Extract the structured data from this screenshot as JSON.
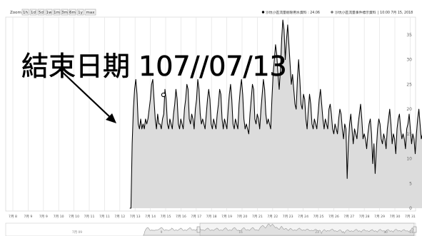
{
  "zoom": {
    "label": "Zoom:",
    "buttons": [
      "1h",
      "1d",
      "5d",
      "1w",
      "1m",
      "3m",
      "6m",
      "1y",
      "max"
    ]
  },
  "legend": {
    "series_label": "沙坑小區流量剔除用水資料 : 24.06",
    "events_label": "沙坑小區流量事件標示資料",
    "datetime": "| 10:00 7月 15, 2018"
  },
  "annotation": {
    "text": "結束日期 107//07/13"
  },
  "navigator": {
    "labels": [
      "7月 09",
      "9",
      "16",
      "23",
      "30",
      "31"
    ]
  },
  "colors": {
    "line": "#000000",
    "fill": "#dcdcdc",
    "annotation": "#000000",
    "nav_fill": "#e8e8e8"
  },
  "chart_data": {
    "type": "area",
    "title": "",
    "xlabel": "",
    "ylabel": "",
    "x_start": "7月 08",
    "x_end": "7月 31",
    "x_tick_labels": [
      "7月 8",
      "7月 9",
      "7月 9",
      "7月 10",
      "7月 10",
      "7月 11",
      "7月 11",
      "7月 12",
      "7月 13",
      "7月 14",
      "7月 15",
      "7月 16",
      "7月 17",
      "7月 18",
      "7月 19",
      "7月 20",
      "7月 21",
      "7月 22",
      "7月 23",
      "7月 24",
      "7月 25",
      "7月 26",
      "7月 27",
      "7月 28",
      "7月 29",
      "7月 30",
      "7月 31"
    ],
    "y_ticks": [
      0,
      5,
      10,
      15,
      20,
      25,
      30,
      35
    ],
    "ylim": [
      0,
      38
    ],
    "grid": {
      "vertical": true,
      "horizontal": false
    },
    "data_start_x": 7.65,
    "data_end_x": 26.75,
    "series": [
      {
        "step_per_point": 0.0795,
        "values": [
          0,
          0,
          13,
          20,
          24,
          26,
          23,
          17,
          16,
          18,
          16,
          17,
          16,
          18,
          17,
          18,
          20,
          22,
          25,
          26,
          22,
          18,
          16,
          19,
          17,
          17,
          16,
          18,
          19,
          24,
          22,
          17,
          16,
          18,
          17,
          16,
          19,
          21,
          24,
          22,
          17,
          16,
          18,
          17,
          16,
          20,
          22,
          25,
          24,
          18,
          17,
          19,
          18,
          16,
          20,
          22,
          26,
          24,
          19,
          17,
          18,
          17,
          16,
          19,
          22,
          24,
          22,
          17,
          16,
          18,
          17,
          16,
          19,
          21,
          24,
          23,
          18,
          16,
          18,
          17,
          16,
          20,
          23,
          25,
          22,
          17,
          16,
          18,
          17,
          16,
          21,
          24,
          26,
          23,
          18,
          16,
          17,
          16,
          15,
          19,
          22,
          25,
          24,
          18,
          17,
          19,
          18,
          16,
          20,
          23,
          26,
          24,
          19,
          17,
          18,
          17,
          16,
          22,
          27,
          30,
          33,
          31,
          27,
          24,
          28,
          34,
          38,
          36,
          30,
          34,
          37,
          33,
          29,
          25,
          27,
          24,
          21,
          20,
          26,
          30,
          26,
          21,
          20,
          23,
          22,
          18,
          16,
          20,
          23,
          21,
          17,
          16,
          18,
          17,
          16,
          19,
          22,
          24,
          21,
          18,
          16,
          18,
          17,
          16,
          20,
          21,
          19,
          16,
          15,
          17,
          16,
          15,
          18,
          20,
          19,
          16,
          14,
          17,
          16,
          6,
          13,
          17,
          19,
          16,
          13,
          16,
          15,
          14,
          17,
          19,
          21,
          18,
          14,
          15,
          14,
          12,
          15,
          17,
          18,
          15,
          9,
          13,
          7,
          12,
          16,
          18,
          17,
          14,
          13,
          15,
          14,
          12,
          16,
          18,
          20,
          17,
          13,
          15,
          14,
          11,
          16,
          18,
          19,
          16,
          14,
          15,
          14,
          12,
          16,
          17,
          19,
          16,
          13,
          15,
          14,
          11,
          15,
          18,
          20,
          17,
          14,
          15,
          14,
          10,
          16,
          18,
          19,
          16,
          13,
          15,
          14,
          11,
          16,
          19,
          20,
          17,
          14,
          16,
          15,
          12,
          16,
          18,
          19,
          16,
          14,
          15,
          14,
          11,
          16,
          19,
          25,
          19,
          17
        ]
      }
    ]
  }
}
